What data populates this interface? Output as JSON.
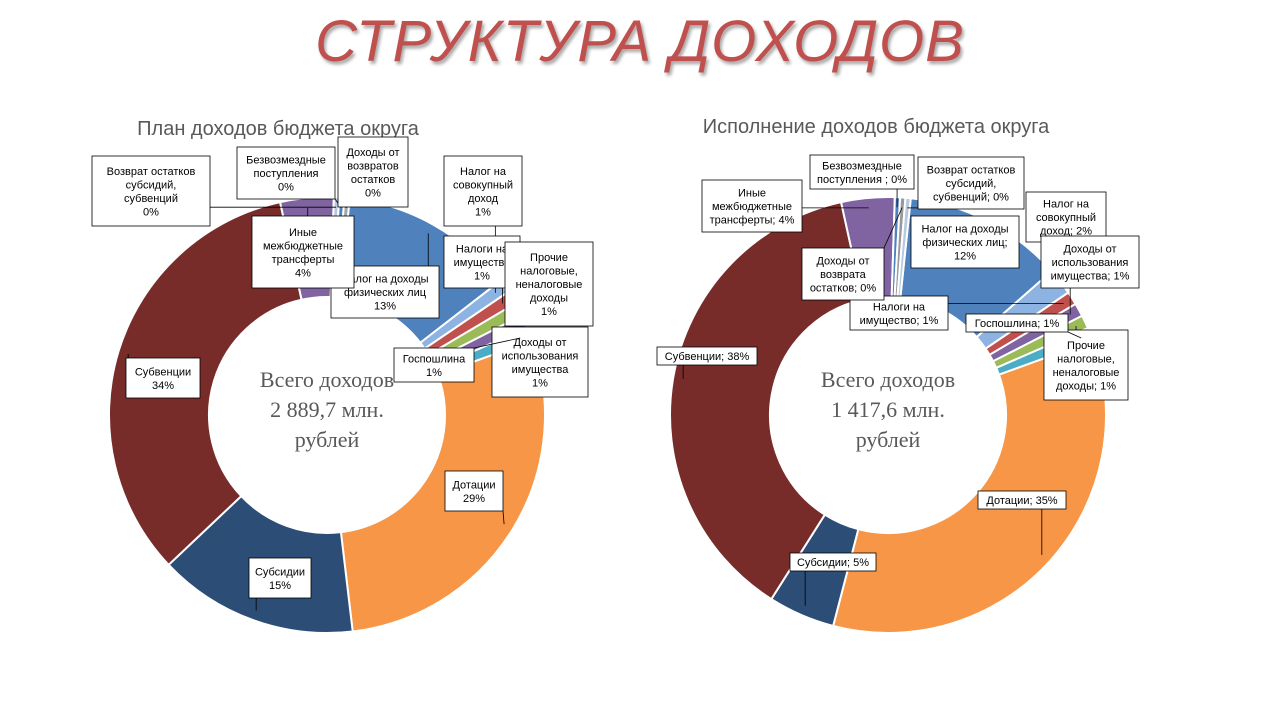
{
  "page": {
    "title": "СТРУКТУРА ДОХОДОВ"
  },
  "colors": {
    "title": "#c0504d",
    "Налог на доходы физических лиц": "#4f81bd",
    "Налог на совокупный доход": "#8db3e2",
    "Налоги на имущество": "#c0504d",
    "Прочие налоговые, неналоговые доходы": "#9bbb59",
    "Доходы от использования имущества": "#8064a2",
    "Госпошлина": "#4bacc6",
    "Дотации": "#f79646",
    "Субсидии": "#2c4d75",
    "Субвенции": "#772c2a",
    "Иные межбюджетные трансферты": "#8064a2",
    "Возврат остатков субсидий, субвенций": "#b7c9e2",
    "Безвозмездные поступления": "#4f81bd",
    "Доходы от возвратов остатков": "#a5a5a5"
  },
  "chart_data": [
    {
      "type": "pie",
      "subtype": "doughnut",
      "title": "План доходов бюджета округа",
      "center_text": [
        "Всего доходов",
        "2 889,7 млн.",
        "рублей"
      ],
      "slices": [
        {
          "name": "Налог на доходы физических лиц",
          "value": 13,
          "label": [
            "Налог на доходы",
            "физических лиц",
            "13%"
          ]
        },
        {
          "name": "Налог на совокупный доход",
          "value": 1,
          "label": [
            "Налог на",
            "совокупный",
            "доход",
            "1%"
          ]
        },
        {
          "name": "Налоги на имущество",
          "value": 1,
          "label": [
            "Налоги на",
            "имущество",
            "1%"
          ]
        },
        {
          "name": "Прочие налоговые, неналоговые доходы",
          "value": 1,
          "label": [
            "Прочие",
            "налоговые,",
            "неналоговые",
            "доходы",
            "1%"
          ]
        },
        {
          "name": "Доходы от использования имущества",
          "value": 1,
          "label": [
            "Доходы от",
            "использования",
            "имущества",
            "1%"
          ]
        },
        {
          "name": "Госпошлина",
          "value": 1,
          "label": [
            "Госпошлина",
            "1%"
          ]
        },
        {
          "name": "Дотации",
          "value": 29,
          "label": [
            "Дотации",
            "29%"
          ]
        },
        {
          "name": "Субсидии",
          "value": 15,
          "label": [
            "Субсидии",
            "15%"
          ]
        },
        {
          "name": "Субвенции",
          "value": 34,
          "label": [
            "Субвенции",
            "34%"
          ]
        },
        {
          "name": "Иные межбюджетные трансферты",
          "value": 4,
          "label": [
            "Иные",
            "межбюджетные",
            "трансферты",
            "4%"
          ]
        },
        {
          "name": "Возврат остатков субсидий, субвенций",
          "value": 0,
          "label": [
            "Возврат остатков",
            "субсидий,",
            "субвенций",
            "0%"
          ]
        },
        {
          "name": "Безвозмездные поступления",
          "value": 0,
          "label": [
            "Безвозмездные",
            "поступления",
            "0%"
          ]
        },
        {
          "name": "Доходы от возвратов остатков",
          "value": 0,
          "label": [
            "Доходы от",
            "возвратов",
            "остатков",
            "0%"
          ]
        }
      ]
    },
    {
      "type": "pie",
      "subtype": "doughnut",
      "title": "Исполнение доходов бюджета округа",
      "center_text": [
        "Всего доходов",
        "1 417,6 млн.",
        "рублей"
      ],
      "slices": [
        {
          "name": "Налог на доходы физических лиц",
          "value": 12,
          "label": [
            "Налог на доходы",
            "физических лиц;",
            "12%"
          ]
        },
        {
          "name": "Налог на совокупный доход",
          "value": 2,
          "label": [
            "Налог на",
            "совокупный",
            "доход; 2%"
          ]
        },
        {
          "name": "Налоги на имущество",
          "value": 1,
          "label": [
            "Налоги на",
            "имущество; 1%"
          ]
        },
        {
          "name": "Доходы от использования имущества",
          "value": 1,
          "label": [
            "Доходы от",
            "использования",
            "имущества; 1%"
          ]
        },
        {
          "name": "Прочие налоговые, неналоговые доходы",
          "value": 1,
          "label": [
            "Прочие",
            "налоговые,",
            "неналоговые",
            "доходы; 1%"
          ]
        },
        {
          "name": "Госпошлина",
          "value": 1,
          "label": [
            "Госпошлина; 1%"
          ]
        },
        {
          "name": "Дотации",
          "value": 35,
          "label": [
            "Дотации; 35%"
          ]
        },
        {
          "name": "Субсидии",
          "value": 5,
          "label": [
            "Субсидии; 5%"
          ]
        },
        {
          "name": "Субвенции",
          "value": 38,
          "label": [
            "Субвенции; 38%"
          ]
        },
        {
          "name": "Иные межбюджетные трансферты",
          "value": 4,
          "label": [
            "Иные",
            "межбюджетные",
            "трансферты; 4%"
          ]
        },
        {
          "name": "Безвозмездные поступления",
          "value": 0,
          "label": [
            "Безвозмездные",
            "поступления ; 0%"
          ]
        },
        {
          "name": "Доходы от возврата остатков",
          "value": 0,
          "label": [
            "Доходы от",
            "возврата",
            "остатков; 0%"
          ]
        },
        {
          "name": "Возврат остатков субсидий, субвенций",
          "value": 0,
          "label": [
            "Возврат остатков",
            "субсидий,",
            "субвенций; 0%"
          ]
        }
      ]
    }
  ]
}
